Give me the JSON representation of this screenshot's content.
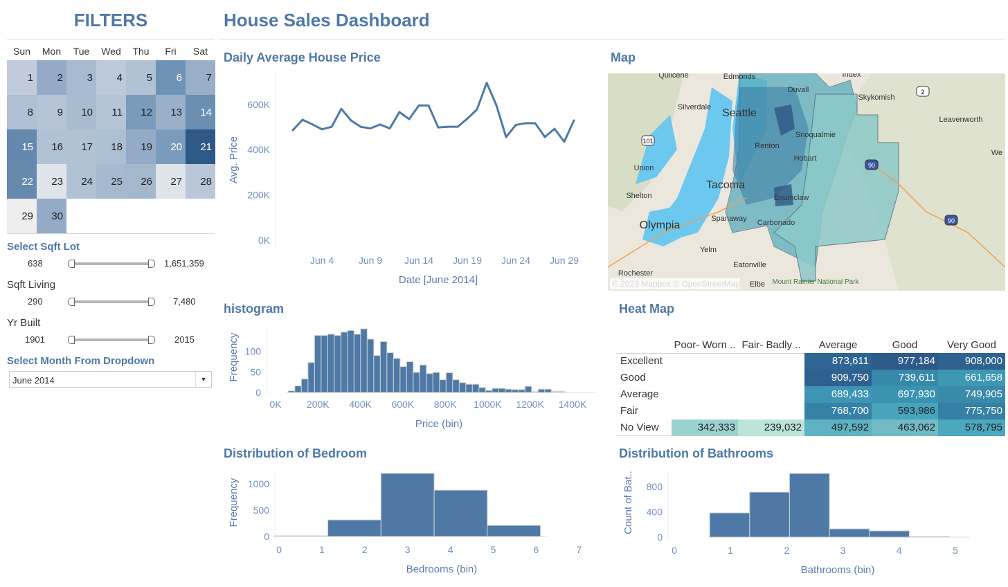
{
  "filters": {
    "title": "FILTERS",
    "calendar": {
      "weekdays": [
        "Sun",
        "Mon",
        "Tue",
        "Wed",
        "Thu",
        "Fri",
        "Sat"
      ],
      "days": [
        {
          "d": "1",
          "c": "#c0ccdc"
        },
        {
          "d": "2",
          "c": "#93abc6"
        },
        {
          "d": "3",
          "c": "#a7bad0"
        },
        {
          "d": "4",
          "c": "#bccadb"
        },
        {
          "d": "5",
          "c": "#b2c2d5"
        },
        {
          "d": "6",
          "c": "#6f93b6",
          "w": 1
        },
        {
          "d": "7",
          "c": "#98afc7"
        },
        {
          "d": "8",
          "c": "#b0c0d4"
        },
        {
          "d": "9",
          "c": "#b5c4d7"
        },
        {
          "d": "10",
          "c": "#a8bbd1"
        },
        {
          "d": "11",
          "c": "#b5c4d7"
        },
        {
          "d": "12",
          "c": "#7a9bbc"
        },
        {
          "d": "13",
          "c": "#9ab0c8"
        },
        {
          "d": "14",
          "c": "#6b8fb3",
          "w": 1
        },
        {
          "d": "15",
          "c": "#6588ae",
          "w": 1
        },
        {
          "d": "16",
          "c": "#b1c2d5"
        },
        {
          "d": "17",
          "c": "#b1c2d5"
        },
        {
          "d": "18",
          "c": "#adbfd3"
        },
        {
          "d": "19",
          "c": "#93abc6"
        },
        {
          "d": "20",
          "c": "#7a9bbc",
          "w": 1
        },
        {
          "d": "21",
          "c": "#2e5886",
          "w": 1
        },
        {
          "d": "22",
          "c": "#6689ae",
          "w": 1
        },
        {
          "d": "23",
          "c": "#dfe3ea"
        },
        {
          "d": "24",
          "c": "#b1c2d5"
        },
        {
          "d": "25",
          "c": "#a6b9cf"
        },
        {
          "d": "26",
          "c": "#a3b7cd"
        },
        {
          "d": "27",
          "c": "#dfe3ea"
        },
        {
          "d": "28",
          "c": "#b9c7d9"
        },
        {
          "d": "29",
          "c": "#eeeeee"
        },
        {
          "d": "30",
          "c": "#93abc6"
        }
      ]
    },
    "sqft_lot": {
      "label": "Select Sqft Lot",
      "min": "638",
      "max": "1,651,359"
    },
    "sqft_living": {
      "label": "Sqft Living",
      "min": "290",
      "max": "7,480"
    },
    "yr_built": {
      "label": "Yr Built",
      "min": "1901",
      "max": "2015"
    },
    "month": {
      "label": "Select Month From Dropdown",
      "value": "June 2014"
    }
  },
  "header": {
    "title": "House Sales Dashboard"
  },
  "panels": {
    "line": "Daily Average House Price",
    "map": "Map",
    "histogram": "histogram",
    "heatmap": "Heat Map",
    "bedroom": "Distribution of Bedroom",
    "bathroom": "Distribution of Bathrooms"
  },
  "map": {
    "labels": [
      "Quilcene",
      "Edmonds",
      "Index",
      "Duvall",
      "Skykomish",
      "Silverdale",
      "Seattle",
      "Leavenworth",
      "Snoqualmie",
      "Renton",
      "Hobart",
      "Union",
      "Tacoma",
      "Shelton",
      "Enumclaw",
      "Spanaway",
      "Carbonado",
      "Olympia",
      "Yelm",
      "Eatonville",
      "Rochester",
      "Elbe",
      "Mount Rainier National Park",
      "We"
    ],
    "shields": [
      "101",
      "2",
      "90",
      "90"
    ],
    "attribution": "© 2023 Mapbox © OpenStreetMap"
  },
  "chart_data": [
    {
      "type": "line",
      "xlabel": "Date [June 2014]",
      "ylabel": "Avg. Price",
      "x_ticks": [
        "Jun 4",
        "Jun 9",
        "Jun 14",
        "Jun 19",
        "Jun 24",
        "Jun 29"
      ],
      "y_ticks": [
        "0K",
        "200K",
        "400K",
        "600K"
      ],
      "ylim": [
        0,
        650000
      ],
      "x": [
        1,
        2,
        3,
        4,
        5,
        6,
        7,
        8,
        9,
        10,
        11,
        12,
        13,
        14,
        15,
        16,
        17,
        18,
        19,
        20,
        21,
        22,
        23,
        24,
        25,
        26,
        27,
        28,
        29,
        30
      ],
      "values": [
        486000,
        532000,
        512000,
        490000,
        501000,
        580000,
        529000,
        501000,
        494000,
        511000,
        494000,
        566000,
        535000,
        595000,
        595000,
        498000,
        501000,
        501000,
        537000,
        578000,
        695000,
        596000,
        456000,
        509000,
        517000,
        517000,
        456000,
        492000,
        435000,
        529000
      ],
      "color": "#4e79a7"
    },
    {
      "type": "bar",
      "xlabel": "Price (bin)",
      "ylabel": "Frequency",
      "x_ticks": [
        "0K",
        "200K",
        "400K",
        "600K",
        "800K",
        "1000K",
        "1200K",
        "1400K"
      ],
      "y_ticks": [
        "0",
        "50",
        "100"
      ],
      "bin_start": 60000,
      "bin_width": 31000,
      "values": [
        4,
        16,
        33,
        73,
        139,
        139,
        142,
        139,
        147,
        151,
        142,
        155,
        130,
        90,
        124,
        97,
        83,
        63,
        75,
        49,
        67,
        46,
        49,
        31,
        48,
        31,
        24,
        20,
        20,
        12,
        5,
        10,
        10,
        8,
        7,
        7,
        15,
        2,
        8,
        8,
        3,
        3
      ],
      "color": "#4e79a7"
    },
    {
      "type": "table",
      "title": "Heat Map",
      "columns": [
        "Poor- Worn ..",
        "Fair- Badly ..",
        "Average",
        "Good",
        "Very Good"
      ],
      "rows": [
        {
          "label": "Excellent",
          "cells": [
            null,
            null,
            {
              "v": "873,611",
              "c": "#2e6592"
            },
            {
              "v": "977,184",
              "c": "#2d5a88"
            },
            {
              "v": "908,000",
              "c": "#2e6390"
            }
          ]
        },
        {
          "label": "Good",
          "cells": [
            null,
            null,
            {
              "v": "909,750",
              "c": "#2e6190"
            },
            {
              "v": "739,611",
              "c": "#3789aa"
            },
            {
              "v": "661,658",
              "c": "#3d98b4"
            }
          ]
        },
        {
          "label": "Average",
          "cells": [
            null,
            null,
            {
              "v": "689,433",
              "c": "#3e94b4"
            },
            {
              "v": "697,930",
              "c": "#3b93b2"
            },
            {
              "v": "749,905",
              "c": "#3a8aaa"
            }
          ]
        },
        {
          "label": "Fair",
          "cells": [
            null,
            null,
            {
              "v": "768,700",
              "c": "#3582a6"
            },
            {
              "v": "593,986",
              "c": "#48a4bc",
              "dark": 1
            },
            {
              "v": "775,750",
              "c": "#3580a5"
            }
          ]
        },
        {
          "label": "No View",
          "cells": [
            {
              "v": "342,333",
              "c": "#9ad2cf",
              "dark": 1
            },
            {
              "v": "239,032",
              "c": "#bce4da",
              "dark": 1
            },
            {
              "v": "497,592",
              "c": "#5fb2c2",
              "dark": 1
            },
            {
              "v": "463,062",
              "c": "#72bbc6",
              "dark": 1
            },
            {
              "v": "578,795",
              "c": "#4ba8be",
              "dark": 1
            }
          ]
        }
      ]
    },
    {
      "type": "bar",
      "xlabel": "Bedrooms (bin)",
      "ylabel": "Frequency",
      "x_ticks": [
        "0",
        "1",
        "2",
        "3",
        "4",
        "5",
        "6",
        "7"
      ],
      "y_ticks": [
        "0",
        "500",
        "1000"
      ],
      "bin_start": -0.1,
      "bin_width": 1.24,
      "values": [
        13,
        315,
        1200,
        880,
        210
      ],
      "color": "#4e79a7"
    },
    {
      "type": "bar",
      "xlabel": "Bathrooms (bin)",
      "ylabel": "Count of Bat..",
      "x_ticks": [
        "0",
        "1",
        "2",
        "3",
        "4",
        "5"
      ],
      "y_ticks": [
        "0",
        "400",
        "800"
      ],
      "bin_start": 0.63,
      "bin_width": 0.71,
      "values": [
        384,
        712,
        1008,
        131,
        99,
        2
      ],
      "color": "#4e79a7"
    }
  ]
}
